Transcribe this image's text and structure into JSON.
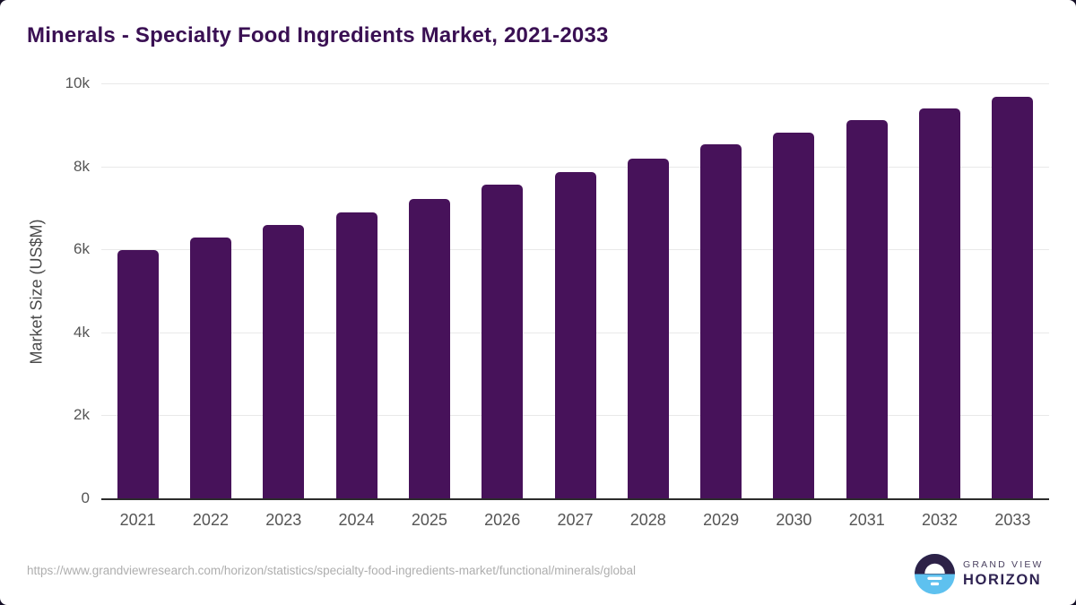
{
  "page": {
    "background_color": "#150f26",
    "card_color": "#ffffff"
  },
  "chart_data": {
    "type": "bar",
    "title": "Minerals - Specialty Food Ingredients Market, 2021-2033",
    "xlabel": "",
    "ylabel": "Market Size (US$M)",
    "categories": [
      "2021",
      "2022",
      "2023",
      "2024",
      "2025",
      "2026",
      "2027",
      "2028",
      "2029",
      "2030",
      "2031",
      "2032",
      "2033"
    ],
    "values": [
      5980,
      6290,
      6590,
      6890,
      7210,
      7560,
      7870,
      8190,
      8530,
      8820,
      9110,
      9390,
      9680
    ],
    "ylim": [
      0,
      10000
    ],
    "yticks": [
      {
        "label": "0",
        "value": 0
      },
      {
        "label": "2k",
        "value": 2000
      },
      {
        "label": "4k",
        "value": 4000
      },
      {
        "label": "6k",
        "value": 6000
      },
      {
        "label": "8k",
        "value": 8000
      },
      {
        "label": "10k",
        "value": 10000
      }
    ],
    "bar_color": "#47125a",
    "grid": true,
    "legend": false,
    "title_color": "#3a1053",
    "axis_line_color": "#2b2b2b",
    "gridline_color": "#e9e9e9",
    "tick_label_color": "#555555"
  },
  "footer": {
    "source_url": "https://www.grandviewresearch.com/horizon/statistics/specialty-food-ingredients-market/functional/minerals/global",
    "brand_line1": "GRAND VIEW",
    "brand_line2": "HORIZON",
    "logo": {
      "icon_name": "horizon-sunset-icon",
      "top_color": "#2d2147",
      "bottom_color": "#5ec1ef",
      "sun_color": "#ffffff"
    }
  }
}
